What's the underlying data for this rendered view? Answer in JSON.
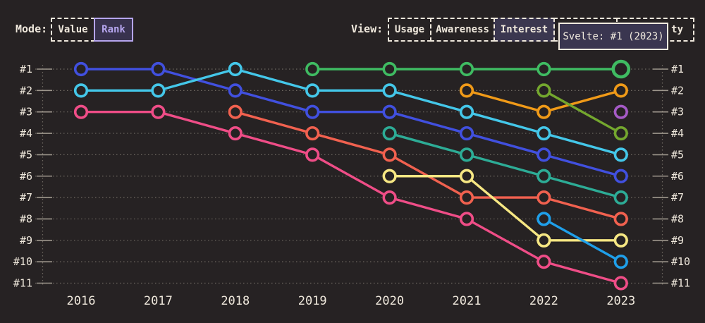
{
  "header": {
    "mode": {
      "label": "Mode:",
      "options": [
        {
          "label": "Value",
          "active": false
        },
        {
          "label": "Rank",
          "active": true
        }
      ]
    },
    "view": {
      "label": "View:",
      "options": [
        {
          "label": "Usage",
          "active": false
        },
        {
          "label": "Awareness",
          "active": false
        },
        {
          "label": "Interest",
          "active": true
        }
      ],
      "occluded": [
        {
          "visible_label": ""
        },
        {
          "visible_label": "ty"
        }
      ]
    }
  },
  "tooltip": {
    "text": "Svelte: #1 (2023)"
  },
  "colors": {
    "background": "#262223",
    "text_cream": "#efe8dc",
    "accent_purple": "#b5a5ee",
    "active_button_bg": "#3b374f",
    "tooltip_bg": "#3a3650",
    "tooltip_border": "#f2ebdf"
  },
  "chart_data": {
    "type": "line",
    "subtype": "bump-rank-chart",
    "title": "",
    "xlabel": "",
    "ylabel": "rank (1 = top, both sides labeled)",
    "x_years": [
      "2016",
      "2017",
      "2018",
      "2019",
      "2020",
      "2021",
      "2022",
      "2023"
    ],
    "rank_labels": [
      "#1",
      "#2",
      "#3",
      "#4",
      "#5",
      "#6",
      "#7",
      "#8",
      "#9",
      "#10",
      "#11"
    ],
    "ylim": [
      1,
      11
    ],
    "grid": "dotted horizontal line per rank, dotted vertical axis line on each side",
    "legend": "none",
    "series": [
      {
        "name": "blue",
        "color": "#4150df",
        "ranks": [
          1,
          1,
          2,
          3,
          3,
          4,
          5,
          6
        ]
      },
      {
        "name": "cyan",
        "color": "#44c7e9",
        "ranks": [
          2,
          2,
          1,
          2,
          2,
          3,
          4,
          5
        ]
      },
      {
        "name": "pink",
        "color": "#ef4d87",
        "ranks": [
          3,
          3,
          4,
          5,
          7,
          8,
          10,
          11
        ]
      },
      {
        "name": "salmon",
        "color": "#f1614f",
        "ranks": [
          null,
          null,
          3,
          4,
          5,
          7,
          7,
          8
        ]
      },
      {
        "name": "Svelte",
        "color": "#3fbb62",
        "ranks": [
          null,
          null,
          null,
          1,
          1,
          1,
          1,
          1
        ]
      },
      {
        "name": "teal",
        "color": "#2dac96",
        "ranks": [
          null,
          null,
          null,
          null,
          4,
          5,
          6,
          7
        ]
      },
      {
        "name": "yellow",
        "color": "#f6e783",
        "ranks": [
          null,
          null,
          null,
          null,
          6,
          6,
          9,
          9
        ]
      },
      {
        "name": "orange",
        "color": "#f09a18",
        "ranks": [
          null,
          null,
          null,
          null,
          null,
          2,
          3,
          2
        ]
      },
      {
        "name": "olive",
        "color": "#74a72e",
        "ranks": [
          null,
          null,
          null,
          null,
          null,
          null,
          2,
          4
        ]
      },
      {
        "name": "sky",
        "color": "#1f9fe9",
        "ranks": [
          null,
          null,
          null,
          null,
          null,
          null,
          8,
          10
        ]
      },
      {
        "name": "purple",
        "color": "#a55ac6",
        "ranks": [
          null,
          null,
          null,
          null,
          null,
          null,
          null,
          3
        ]
      }
    ],
    "highlight": {
      "series": "Svelte",
      "year": "2023",
      "rank": 1
    },
    "style": {
      "grid_color": "#6e6861",
      "tick_color": "#9e978d",
      "label_color": "#efe8dc",
      "dot_fill": "#262223"
    }
  }
}
